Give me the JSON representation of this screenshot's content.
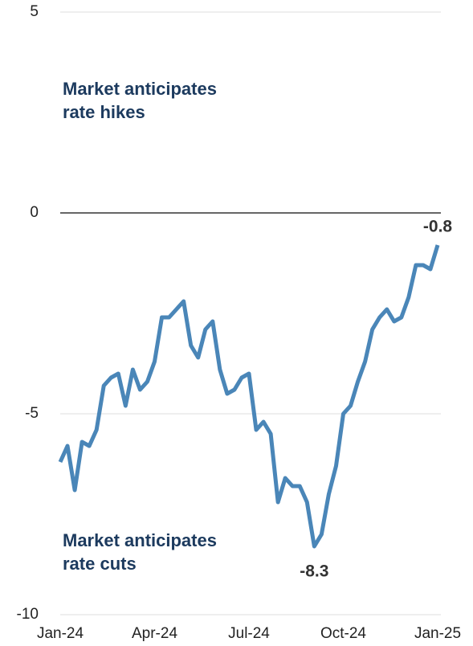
{
  "chart_data": {
    "type": "line",
    "categories": [
      "Jan-24",
      null,
      null,
      null,
      null,
      null,
      null,
      null,
      null,
      null,
      null,
      null,
      null,
      "Apr-24",
      null,
      null,
      null,
      null,
      null,
      null,
      null,
      null,
      null,
      null,
      null,
      null,
      "Jul-24",
      null,
      null,
      null,
      null,
      null,
      null,
      null,
      null,
      null,
      null,
      null,
      null,
      "Oct-24",
      null,
      null,
      null,
      null,
      null,
      null,
      null,
      null,
      null,
      null,
      null,
      null,
      "Jan-25"
    ],
    "series": [
      {
        "color": "#4a86b8",
        "values": [
          -6.2,
          -5.8,
          -6.9,
          -5.7,
          -5.8,
          -5.4,
          -4.3,
          -4.1,
          -4.0,
          -4.8,
          -3.9,
          -4.4,
          -4.2,
          -3.7,
          -2.6,
          -2.6,
          -2.4,
          -2.2,
          -3.3,
          -3.6,
          -2.9,
          -2.7,
          -3.9,
          -4.5,
          -4.4,
          -4.1,
          -4.0,
          -5.4,
          -5.2,
          -5.5,
          -7.2,
          -6.6,
          -6.8,
          -6.8,
          -7.2,
          -8.3,
          -8.0,
          -7.0,
          -6.3,
          -5.0,
          -4.8,
          -4.2,
          -3.7,
          -2.9,
          -2.6,
          -2.4,
          -2.7,
          -2.6,
          -2.1,
          -1.3,
          -1.3,
          -1.4,
          -0.8
        ]
      }
    ],
    "ylim": [
      -10,
      5
    ],
    "yticks": [
      -10,
      -5,
      0,
      5
    ],
    "grid": true,
    "annotations": [
      [
        "Market anticipates",
        "rate hikes"
      ],
      [
        "Market anticipates",
        "rate cuts"
      ]
    ]
  }
}
